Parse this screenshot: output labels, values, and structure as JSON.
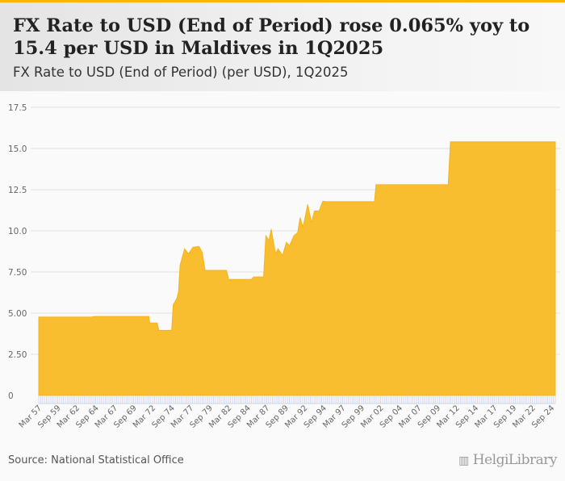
{
  "header": {
    "title": "FX Rate to USD (End of Period) rose 0.065% yoy to 15.4 per USD in Maldives in 1Q2025",
    "subtitle": "FX Rate to USD (End of Period) (per USD), 1Q2025"
  },
  "footer": {
    "source": "Source: National Statistical Office",
    "logo": "HelgiLibrary"
  },
  "colors": {
    "accent": "#f6b800",
    "area": "#f9bd30"
  },
  "chart_data": {
    "type": "area",
    "title": "FX Rate to USD (End of Period) (per USD), 1Q2025",
    "xlabel": "",
    "ylabel": "per USD",
    "ylim": [
      0,
      17.5
    ],
    "yticks": [
      "0",
      "2.50",
      "5.00",
      "7.50",
      "10.0",
      "12.5",
      "15.0",
      "17.5"
    ],
    "ytick_values": [
      0,
      2.5,
      5,
      7.5,
      10,
      12.5,
      15,
      17.5
    ],
    "xrange": [
      1957.0,
      2025.0
    ],
    "xticks": [
      "Mar 57",
      "Sep 59",
      "Mar 62",
      "Sep 64",
      "Mar 67",
      "Sep 69",
      "Mar 72",
      "Sep 74",
      "Mar 77",
      "Sep 79",
      "Mar 82",
      "Sep 84",
      "Mar 87",
      "Sep 89",
      "Mar 92",
      "Sep 94",
      "Mar 97",
      "Sep 99",
      "Mar 02",
      "Sep 04",
      "Mar 07",
      "Sep 09",
      "Mar 12",
      "Sep 14",
      "Mar 17",
      "Sep 19",
      "Mar 22",
      "Sep 24"
    ],
    "points_year_value": [
      [
        1957.0,
        4.76
      ],
      [
        1964.0,
        4.76
      ],
      [
        1964.3,
        4.8
      ],
      [
        1971.5,
        4.8
      ],
      [
        1971.6,
        4.4
      ],
      [
        1972.6,
        4.4
      ],
      [
        1972.8,
        3.95
      ],
      [
        1974.5,
        3.95
      ],
      [
        1974.7,
        5.5
      ],
      [
        1975.2,
        5.9
      ],
      [
        1975.4,
        6.3
      ],
      [
        1975.6,
        7.9
      ],
      [
        1976.2,
        8.9
      ],
      [
        1976.7,
        8.6
      ],
      [
        1977.3,
        9.0
      ],
      [
        1978.1,
        9.05
      ],
      [
        1978.5,
        8.7
      ],
      [
        1978.9,
        7.6
      ],
      [
        1981.7,
        7.6
      ],
      [
        1982.0,
        7.05
      ],
      [
        1985.0,
        7.05
      ],
      [
        1985.3,
        7.2
      ],
      [
        1986.6,
        7.2
      ],
      [
        1986.9,
        9.7
      ],
      [
        1987.3,
        9.4
      ],
      [
        1987.6,
        10.1
      ],
      [
        1987.9,
        9.3
      ],
      [
        1988.2,
        8.6
      ],
      [
        1988.5,
        8.9
      ],
      [
        1989.1,
        8.5
      ],
      [
        1989.6,
        9.3
      ],
      [
        1990.0,
        9.1
      ],
      [
        1990.6,
        9.7
      ],
      [
        1991.1,
        9.9
      ],
      [
        1991.4,
        10.8
      ],
      [
        1991.8,
        10.2
      ],
      [
        1992.4,
        11.6
      ],
      [
        1992.9,
        10.5
      ],
      [
        1993.3,
        11.2
      ],
      [
        1993.9,
        11.2
      ],
      [
        1994.4,
        11.8
      ],
      [
        1994.8,
        11.77
      ],
      [
        2001.2,
        11.77
      ],
      [
        2001.4,
        12.8
      ],
      [
        2010.9,
        12.8
      ],
      [
        2011.2,
        15.4
      ],
      [
        2025.0,
        15.4
      ]
    ],
    "last_value": 15.4,
    "yoy_change_pct": 0.065,
    "grid": true,
    "legend": "none"
  }
}
